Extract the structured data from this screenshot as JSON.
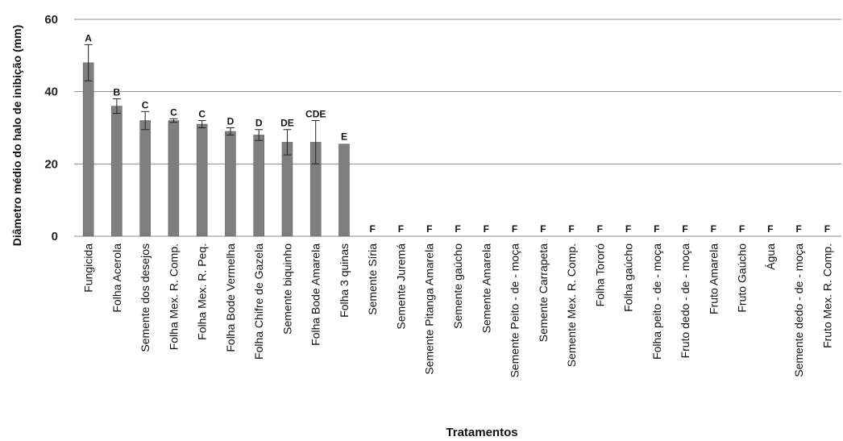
{
  "chart_data": {
    "type": "bar",
    "xlabel": "Tratamentos",
    "ylabel": "Diâmetro médio do halo de inibição (mm)",
    "ylim": [
      0,
      60
    ],
    "yticks": [
      0,
      20,
      40,
      60
    ],
    "grid": true,
    "bar_color": "#7f7f7f",
    "categories": [
      "Fungicida",
      "Folha Acerola",
      "Semente dos desejos",
      "Folha Mex. R. Comp.",
      "Folha Mex. R. Peq.",
      "Folha Bode Vermelha",
      "Folha Chifre de Gazela",
      "Semente biquinho",
      "Folha Bode Amarela",
      "Folha 3 quinas",
      "Semente Síria",
      "Semente Juremá",
      "Semente Pitanga Amarela",
      "Semente gaúcho",
      "Semente Amarela",
      "Semente Peito - de - moça",
      "Semente Carrapeta",
      "Semente Mex. R. Comp.",
      "Folha Tororó",
      "Folha gaúcho",
      "Folha peito - de - moça",
      "Fruto dedo - de - moça",
      "Fruto Amarela",
      "Fruto Gaúcho",
      "Água",
      "Semente dedo - de - moça",
      "Fruto Mex. R. Comp."
    ],
    "values": [
      48,
      36,
      32,
      32,
      31,
      29,
      28,
      26,
      26,
      25.5,
      0,
      0,
      0,
      0,
      0,
      0,
      0,
      0,
      0,
      0,
      0,
      0,
      0,
      0,
      0,
      0,
      0
    ],
    "error": [
      5,
      2,
      2.5,
      0.5,
      1,
      1,
      1.5,
      3.5,
      6,
      0,
      0,
      0,
      0,
      0,
      0,
      0,
      0,
      0,
      0,
      0,
      0,
      0,
      0,
      0,
      0,
      0,
      0
    ],
    "annotations": [
      "A",
      "B",
      "C",
      "C",
      "C",
      "D",
      "D",
      "DE",
      "CDE",
      "E",
      "F",
      "F",
      "F",
      "F",
      "F",
      "F",
      "F",
      "F",
      "F",
      "F",
      "F",
      "F",
      "F",
      "F",
      "F",
      "F",
      "F"
    ]
  }
}
